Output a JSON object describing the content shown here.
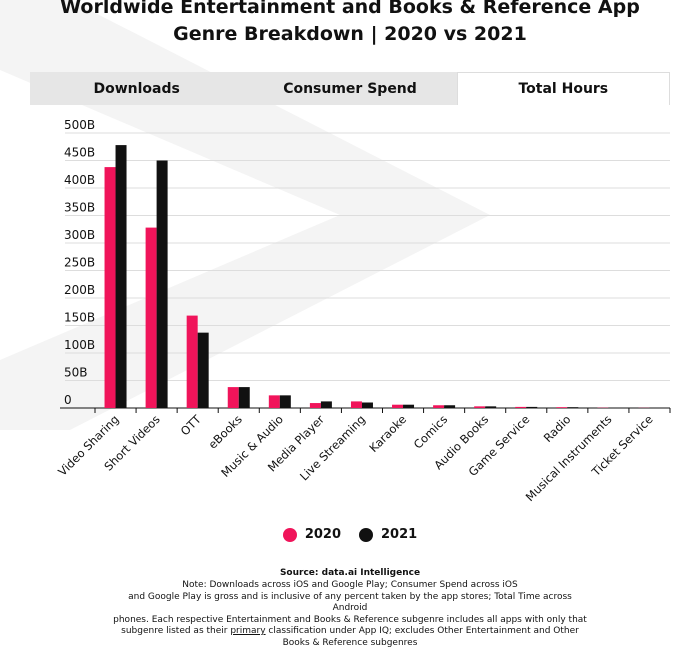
{
  "title_line1": "Worldwide Entertainment and Books & Reference App",
  "title_line2": "Genre Breakdown | 2020 vs 2021",
  "tabs": [
    {
      "label": "Downloads",
      "active": false
    },
    {
      "label": "Consumer Spend",
      "active": false
    },
    {
      "label": "Total Hours",
      "active": true
    }
  ],
  "colors": {
    "s2020": "#f0145a",
    "s2021": "#111111",
    "grid": "#dddddd"
  },
  "chart_data": {
    "type": "bar",
    "title": "",
    "xlabel": "",
    "ylabel": "",
    "ylim": [
      0,
      500
    ],
    "y_ticks": [
      "0",
      "50B",
      "100B",
      "150B",
      "200B",
      "250B",
      "300B",
      "350B",
      "400B",
      "450B",
      "500B"
    ],
    "grid": true,
    "legend_position": "bottom",
    "categories": [
      "Video Sharing",
      "Short Videos",
      "OTT",
      "eBooks",
      "Music & Audio",
      "Media Player",
      "Live Streaming",
      "Karaoke",
      "Comics",
      "Audio Books",
      "Game Service",
      "Radio",
      "Musical Instruments",
      "Ticket Service"
    ],
    "series": [
      {
        "name": "2020",
        "values": [
          438,
          328,
          168,
          38,
          23,
          9,
          12,
          6,
          5,
          3,
          2,
          1.5,
          0.5,
          0.3
        ]
      },
      {
        "name": "2021",
        "values": [
          478,
          450,
          137,
          38,
          23,
          12,
          10,
          6,
          5,
          3,
          2,
          1.5,
          0.5,
          0.3
        ]
      }
    ]
  },
  "source": "Source: data.ai Intelligence",
  "note": {
    "l1": "Note: Downloads across iOS and Google Play; Consumer Spend across iOS",
    "l2": "and Google Play is gross and is inclusive of any percent taken by the app stores; Total Time across Android",
    "l3": "phones. Each respective Entertainment and Books & Reference subgenre includes all apps with only that",
    "l4a": "subgenre listed as their ",
    "l4b": "primary",
    "l4c": " classification under App IQ; excludes Other Entertainment and Other",
    "l5": "Books & Reference subgenres"
  }
}
